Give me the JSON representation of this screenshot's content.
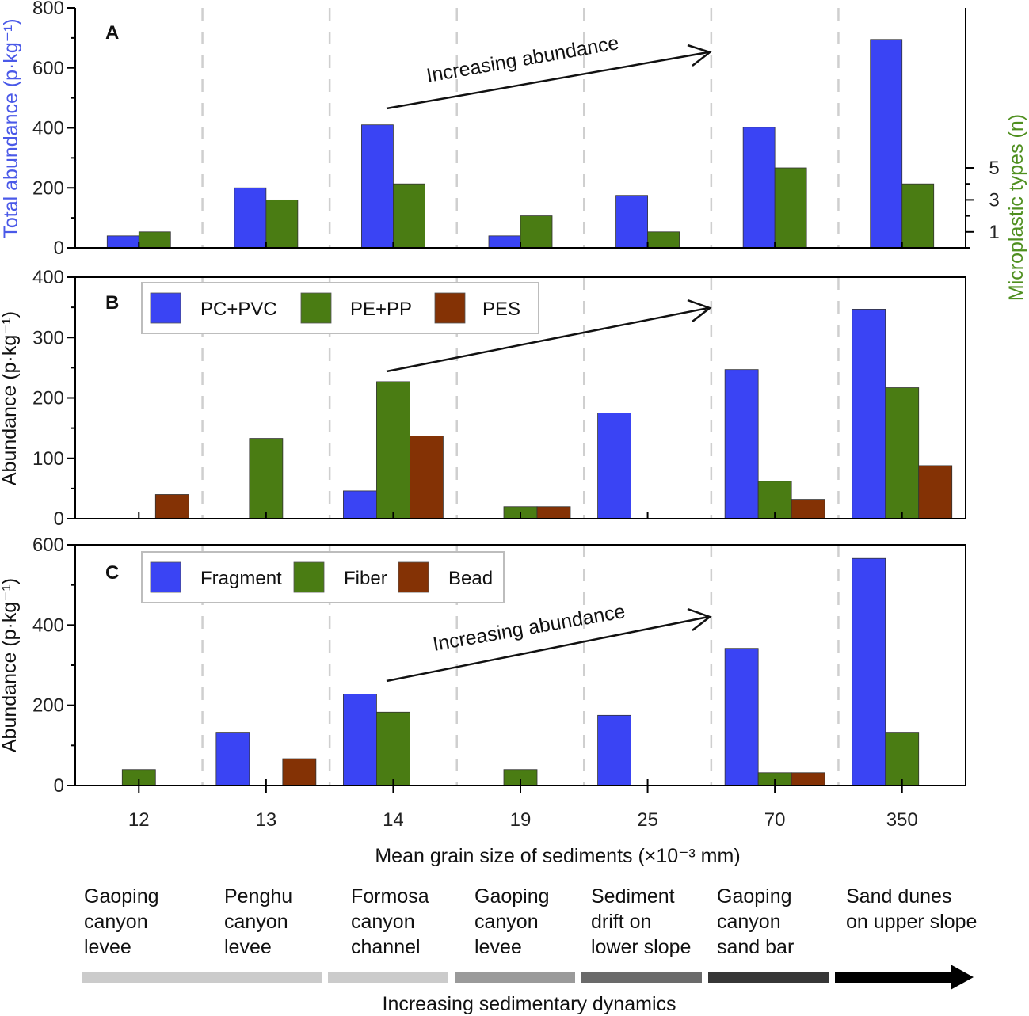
{
  "colors": {
    "blue": "#3a44f4",
    "green": "#4a7c13",
    "brown": "#843205",
    "left_axis_A": "#4a59e8",
    "right_axis_A": "#4f8f1f",
    "axis": "#000000",
    "divider": "#cfcfcf",
    "legend_border": "#bdbdbd"
  },
  "chart_data": [
    {
      "panel_label": "A",
      "type": "bar",
      "categories": [
        "12",
        "13",
        "14",
        "19",
        "25",
        "70",
        "350"
      ],
      "ylabel": "Total abundance (p·kg⁻¹)",
      "ylim": [
        0,
        800
      ],
      "yticks": [
        "0",
        "200",
        "400",
        "600",
        "800"
      ],
      "y2label": "Microplastic types (n)",
      "y2lim": [
        0,
        15
      ],
      "y2ticks": [
        "1",
        "3",
        "5"
      ],
      "series": [
        {
          "values": [
            40,
            200,
            410,
            40,
            175,
            402,
            695
          ],
          "color": "blue",
          "axis": "left"
        },
        {
          "values": [
            1,
            3,
            4,
            2,
            1,
            5,
            4
          ],
          "color": "green",
          "axis": "right"
        }
      ],
      "annotation": "Increasing abundance"
    },
    {
      "panel_label": "B",
      "type": "bar",
      "categories": [
        "12",
        "13",
        "14",
        "19",
        "25",
        "70",
        "350"
      ],
      "ylabel": "Abundance (p·kg⁻¹)",
      "ylim": [
        0,
        400
      ],
      "yticks": [
        "0",
        "100",
        "200",
        "300",
        "400"
      ],
      "legend": [
        "PC+PVC",
        "PE+PP",
        "PES"
      ],
      "legend_position": "top-left",
      "series": [
        {
          "name": "PC+PVC",
          "values": [
            0,
            0,
            46,
            0,
            175,
            247,
            347
          ],
          "color": "blue"
        },
        {
          "name": "PE+PP",
          "values": [
            0,
            133,
            227,
            20,
            0,
            62,
            217
          ],
          "color": "green"
        },
        {
          "name": "PES",
          "values": [
            40,
            0,
            137,
            20,
            0,
            32,
            88
          ],
          "color": "brown"
        }
      ]
    },
    {
      "panel_label": "C",
      "type": "bar",
      "categories": [
        "12",
        "13",
        "14",
        "19",
        "25",
        "70",
        "350"
      ],
      "ylabel": "Abundance (p·kg⁻¹)",
      "ylim": [
        0,
        600
      ],
      "yticks": [
        "0",
        "200",
        "400",
        "600"
      ],
      "legend": [
        "Fragment",
        "Fiber",
        "Bead"
      ],
      "legend_position": "top-left",
      "series": [
        {
          "name": "Fragment",
          "values": [
            0,
            133,
            228,
            0,
            175,
            342,
            566
          ],
          "color": "blue"
        },
        {
          "name": "Fiber",
          "values": [
            40,
            0,
            183,
            40,
            0,
            32,
            133
          ],
          "color": "green"
        },
        {
          "name": "Bead",
          "values": [
            0,
            67,
            0,
            0,
            0,
            32,
            0
          ],
          "color": "brown"
        }
      ],
      "annotation": "Increasing abundance"
    }
  ],
  "xlabel": "Mean grain size of sediments (×10⁻³ mm)",
  "environments": [
    [
      "Gaoping",
      "canyon",
      "levee"
    ],
    [
      "Penghu",
      "canyon",
      "levee"
    ],
    [
      "Formosa",
      "canyon",
      "channel"
    ],
    [
      "Gaoping",
      "canyon",
      "levee"
    ],
    [
      "Sediment",
      "drift on",
      "lower slope"
    ],
    [
      "Gaoping",
      "canyon",
      "sand bar"
    ],
    [
      "Sand dunes",
      "on upper slope"
    ]
  ],
  "gradient_colors": [
    "#cbcbcb",
    "#cbcbcb",
    "#cbcbcb",
    "#9a9a9a",
    "#6a6a6a",
    "#363636",
    "#000000"
  ],
  "gradient_label": "Increasing sedimentary dynamics"
}
